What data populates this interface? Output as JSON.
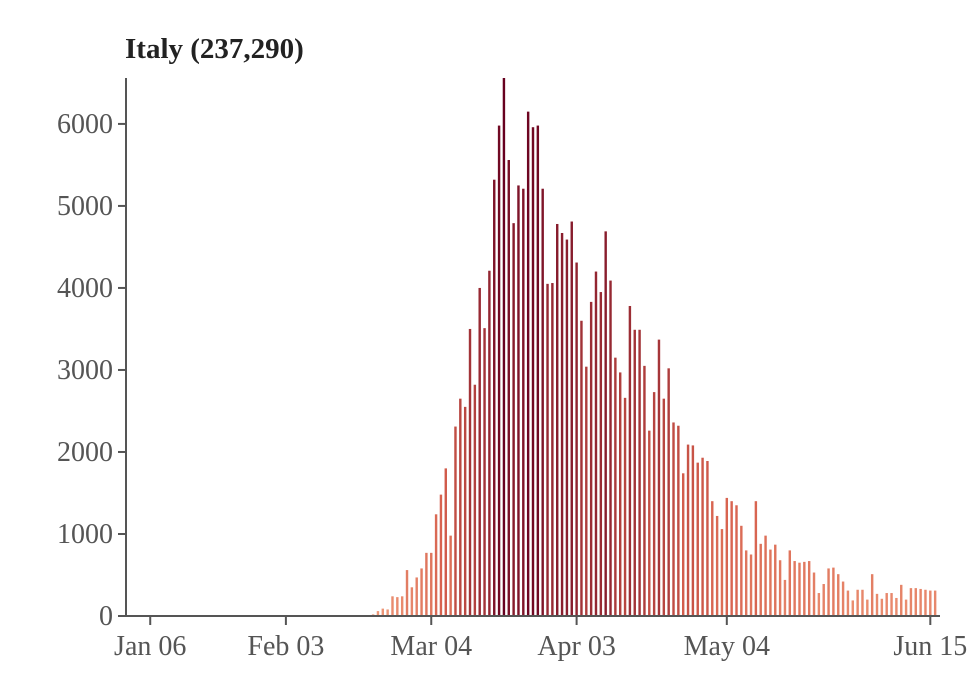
{
  "chart_data": {
    "type": "bar",
    "title": "Italy (237,290)",
    "xlabel": "",
    "ylabel": "",
    "x_start": "Jan 01",
    "x_end": "Jun 17",
    "ylim": [
      0,
      6560
    ],
    "y_ticks": [
      0,
      1000,
      2000,
      3000,
      4000,
      5000,
      6000
    ],
    "x_ticks": [
      "Jan 06",
      "Feb 03",
      "Mar 04",
      "Apr 03",
      "May 04",
      "Jun 15"
    ],
    "grid": false,
    "color_scale": {
      "low": "#f4a582",
      "mid": "#d6604d",
      "high": "#67001f"
    },
    "series": [
      {
        "points": [
          [
            "Feb 21",
            20
          ],
          [
            "Feb 22",
            60
          ],
          [
            "Feb 23",
            90
          ],
          [
            "Feb 24",
            80
          ],
          [
            "Feb 25",
            240
          ],
          [
            "Feb 26",
            230
          ],
          [
            "Feb 27",
            240
          ],
          [
            "Feb 28",
            560
          ],
          [
            "Feb 29",
            350
          ],
          [
            "Mar 01",
            470
          ],
          [
            "Mar 02",
            580
          ],
          [
            "Mar 03",
            770
          ],
          [
            "Mar 04",
            770
          ],
          [
            "Mar 05",
            1240
          ],
          [
            "Mar 06",
            1480
          ],
          [
            "Mar 07",
            1800
          ],
          [
            "Mar 08",
            980
          ],
          [
            "Mar 09",
            2310
          ],
          [
            "Mar 10",
            2650
          ],
          [
            "Mar 11",
            2550
          ],
          [
            "Mar 12",
            3500
          ],
          [
            "Mar 13",
            2820
          ],
          [
            "Mar 14",
            4000
          ],
          [
            "Mar 15",
            3510
          ],
          [
            "Mar 16",
            4210
          ],
          [
            "Mar 17",
            5320
          ],
          [
            "Mar 18",
            5980
          ],
          [
            "Mar 19",
            6560
          ],
          [
            "Mar 20",
            5560
          ],
          [
            "Mar 21",
            4790
          ],
          [
            "Mar 22",
            5250
          ],
          [
            "Mar 23",
            5210
          ],
          [
            "Mar 24",
            6150
          ],
          [
            "Mar 25",
            5960
          ],
          [
            "Mar 26",
            5980
          ],
          [
            "Mar 27",
            5210
          ],
          [
            "Mar 28",
            4050
          ],
          [
            "Mar 29",
            4060
          ],
          [
            "Mar 30",
            4780
          ],
          [
            "Mar 31",
            4670
          ],
          [
            "Apr 01",
            4590
          ],
          [
            "Apr 02",
            4810
          ],
          [
            "Apr 03",
            4310
          ],
          [
            "Apr 04",
            3600
          ],
          [
            "Apr 05",
            3040
          ],
          [
            "Apr 06",
            3830
          ],
          [
            "Apr 07",
            4200
          ],
          [
            "Apr 08",
            3950
          ],
          [
            "Apr 09",
            4690
          ],
          [
            "Apr 10",
            4090
          ],
          [
            "Apr 11",
            3150
          ],
          [
            "Apr 12",
            2970
          ],
          [
            "Apr 13",
            2660
          ],
          [
            "Apr 14",
            3780
          ],
          [
            "Apr 15",
            3490
          ],
          [
            "Apr 16",
            3490
          ],
          [
            "Apr 17",
            3050
          ],
          [
            "Apr 18",
            2260
          ],
          [
            "Apr 19",
            2730
          ],
          [
            "Apr 20",
            3370
          ],
          [
            "Apr 21",
            2650
          ],
          [
            "Apr 22",
            3020
          ],
          [
            "Apr 23",
            2360
          ],
          [
            "Apr 24",
            2320
          ],
          [
            "Apr 25",
            1740
          ],
          [
            "Apr 26",
            2090
          ],
          [
            "Apr 27",
            2080
          ],
          [
            "Apr 28",
            1870
          ],
          [
            "Apr 29",
            1930
          ],
          [
            "Apr 30",
            1890
          ],
          [
            "May 01",
            1400
          ],
          [
            "May 02",
            1220
          ],
          [
            "May 03",
            1060
          ],
          [
            "May 04",
            1440
          ],
          [
            "May 05",
            1400
          ],
          [
            "May 06",
            1350
          ],
          [
            "May 07",
            1100
          ],
          [
            "May 08",
            800
          ],
          [
            "May 09",
            750
          ],
          [
            "May 10",
            1400
          ],
          [
            "May 11",
            880
          ],
          [
            "May 12",
            980
          ],
          [
            "May 13",
            810
          ],
          [
            "May 14",
            870
          ],
          [
            "May 15",
            680
          ],
          [
            "May 16",
            440
          ],
          [
            "May 17",
            800
          ],
          [
            "May 18",
            670
          ],
          [
            "May 19",
            650
          ],
          [
            "May 20",
            660
          ],
          [
            "May 21",
            670
          ],
          [
            "May 22",
            530
          ],
          [
            "May 23",
            280
          ],
          [
            "May 24",
            390
          ],
          [
            "May 25",
            580
          ],
          [
            "May 26",
            590
          ],
          [
            "May 27",
            510
          ],
          [
            "May 28",
            420
          ],
          [
            "May 29",
            310
          ],
          [
            "May 30",
            190
          ],
          [
            "May 31",
            320
          ],
          [
            "Jun 01",
            320
          ],
          [
            "Jun 02",
            200
          ],
          [
            "Jun 03",
            510
          ],
          [
            "Jun 04",
            270
          ],
          [
            "Jun 05",
            210
          ],
          [
            "Jun 06",
            280
          ],
          [
            "Jun 07",
            280
          ],
          [
            "Jun 08",
            220
          ],
          [
            "Jun 09",
            380
          ],
          [
            "Jun 10",
            200
          ],
          [
            "Jun 11",
            340
          ],
          [
            "Jun 12",
            340
          ],
          [
            "Jun 13",
            330
          ],
          [
            "Jun 14",
            320
          ],
          [
            "Jun 15",
            310
          ],
          [
            "Jun 16",
            310
          ]
        ]
      }
    ]
  }
}
